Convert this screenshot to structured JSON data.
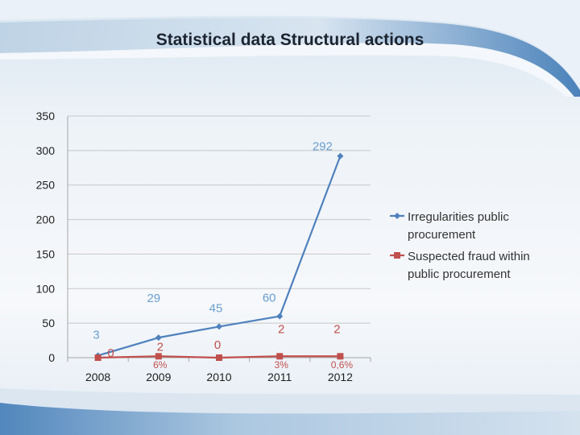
{
  "slide": {
    "title": "Statistical data Structural actions"
  },
  "colors": {
    "series1": "#4f81bd",
    "series2": "#c0504d",
    "label1": "#6a9fcf",
    "grid": "#c8c8c8"
  },
  "chart_data": {
    "type": "line",
    "title": "",
    "xlabel": "",
    "ylabel": "",
    "ylim": [
      0,
      350
    ],
    "yticks": [
      0,
      50,
      100,
      150,
      200,
      250,
      300,
      350
    ],
    "grid": true,
    "legend_position": "right",
    "categories": [
      "2008",
      "2009",
      "2010",
      "2011",
      "2012"
    ],
    "series": [
      {
        "name": "Irregularities public procurement",
        "legend_lines": [
          "Irregularities public",
          "procurement"
        ],
        "values": [
          3,
          29,
          45,
          60,
          292
        ],
        "data_labels": [
          "3",
          "29",
          "45",
          "60",
          "292"
        ],
        "color": "#4f81bd",
        "marker": "diamond"
      },
      {
        "name": "Suspected fraud within public procurement",
        "legend_lines": [
          "Suspected fraud within",
          "public procurement"
        ],
        "values": [
          0,
          2,
          0,
          2,
          2
        ],
        "data_labels": [
          "0",
          "2",
          "0",
          "2",
          "2"
        ],
        "color": "#c0504d",
        "marker": "square"
      }
    ],
    "annotations": [
      {
        "category": "2009",
        "text": "6%"
      },
      {
        "category": "2011",
        "text": "3%"
      },
      {
        "category": "2012",
        "text": "0,6%"
      }
    ]
  }
}
